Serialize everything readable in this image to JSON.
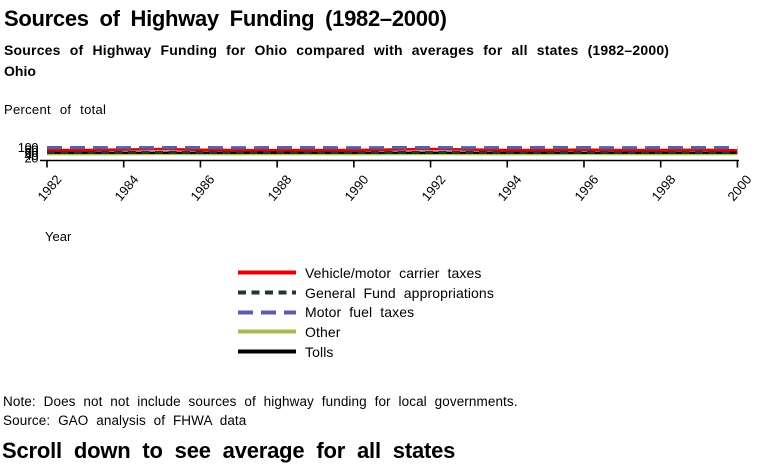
{
  "page": {
    "title": "Sources of Highway Funding (1982–2000)",
    "subtitle": "Sources of Highway Funding for Ohio compared with averages for all states (1982–2000)",
    "state_label": "Ohio",
    "note": "Note: Does not not include sources of highway funding for local governments.",
    "source": "Source: GAO analysis of FHWA data",
    "scroll_prompt": "Scroll down to see average for all states"
  },
  "chart_data": {
    "type": "line",
    "title": "Ohio",
    "ylabel": "Percent of total",
    "xlabel": "Year",
    "ylim": [
      0,
      100
    ],
    "grid": false,
    "legend_position": "bottom",
    "x": [
      1982,
      1983,
      1984,
      1985,
      1986,
      1987,
      1988,
      1989,
      1990,
      1991,
      1992,
      1993,
      1994,
      1995,
      1996,
      1997,
      1998,
      1999,
      2000
    ],
    "x_tick_labels": [
      "1982",
      "1984",
      "1986",
      "1988",
      "1990",
      "1992",
      "1994",
      "1996",
      "1998",
      "2000"
    ],
    "y_tick_labels": [
      "100",
      "80",
      "60",
      "40",
      "20"
    ],
    "series": [
      {
        "name": "Vehicle/motor carrier taxes",
        "color": "#e60000",
        "style": "solid",
        "dash_pattern": "",
        "width": 2.6,
        "draw_order": 4,
        "values": [
          80,
          80,
          84,
          88,
          82,
          80,
          79,
          80,
          80,
          84,
          88,
          84,
          80,
          80,
          83,
          80,
          80,
          82,
          78
        ]
      },
      {
        "name": "General Fund appropriations",
        "color": "#1e3a28",
        "style": "dashed",
        "dash_pattern": "8,5.5",
        "width": 3,
        "draw_order": 3,
        "values": [
          62,
          62,
          62,
          62,
          62,
          62,
          62,
          62,
          62,
          62,
          62,
          62,
          62,
          62,
          62,
          62,
          62,
          62,
          62
        ]
      },
      {
        "name": "Motor fuel taxes",
        "color": "#5c5ca8",
        "style": "dashed",
        "dash_pattern": "15,8",
        "width": 3.2,
        "draw_order": 5,
        "values": [
          99,
          99,
          98,
          99,
          99,
          98,
          99,
          99,
          98,
          99,
          99,
          98,
          99,
          100,
          99,
          98,
          99,
          99,
          99
        ]
      },
      {
        "name": "Other",
        "color": "#a9ba52",
        "style": "solid",
        "dash_pattern": "",
        "width": 2.4,
        "draw_order": 1,
        "values": [
          50,
          49,
          50,
          51,
          50,
          49,
          50,
          50,
          49,
          50,
          51,
          50,
          49,
          50,
          51,
          50,
          49,
          50,
          50
        ]
      },
      {
        "name": "Tolls",
        "color": "#000000",
        "style": "solid",
        "dash_pattern": "",
        "width": 2.4,
        "draw_order": 2,
        "values": [
          60,
          60,
          60,
          60,
          60,
          60,
          60,
          60,
          60,
          60,
          60,
          60,
          60,
          60,
          60,
          60,
          60,
          60,
          60
        ]
      }
    ]
  }
}
